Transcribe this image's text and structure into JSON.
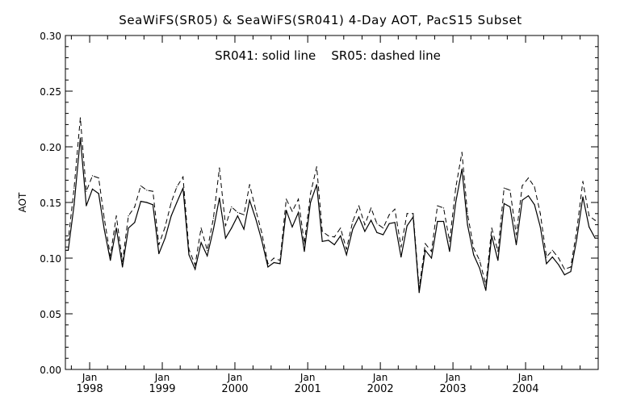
{
  "chart_data": {
    "type": "line",
    "title": "SeaWiFS(SR05) & SeaWiFS(SR041) 4-Day AOT, PacS15 Subset",
    "annotation": "SR041: solid line    SR05: dashed line",
    "xlabel": "",
    "ylabel": "AOT",
    "xlim": [
      "1997-09-01",
      "2004-12-31"
    ],
    "ylim": [
      0.0,
      0.3
    ],
    "y_ticks": [
      "0.00",
      "0.05",
      "0.10",
      "0.15",
      "0.20",
      "0.25",
      "0.30"
    ],
    "x_ticks": [
      {
        "date": "1998-01-01",
        "month": "Jan",
        "year": "1998"
      },
      {
        "date": "1999-01-01",
        "month": "Jan",
        "year": "1999"
      },
      {
        "date": "2000-01-01",
        "month": "Jan",
        "year": "2000"
      },
      {
        "date": "2001-01-01",
        "month": "Jan",
        "year": "2001"
      },
      {
        "date": "2002-01-01",
        "month": "Jan",
        "year": "2002"
      },
      {
        "date": "2003-01-01",
        "month": "Jan",
        "year": "2003"
      },
      {
        "date": "2004-01-01",
        "month": "Jan",
        "year": "2004"
      }
    ],
    "grid": false,
    "x": [
      "1997-09-15",
      "1997-10-15",
      "1997-11-15",
      "1997-12-15",
      "1998-01-15",
      "1998-02-15",
      "1998-03-15",
      "1998-04-15",
      "1998-05-15",
      "1998-06-15",
      "1998-07-15",
      "1998-08-15",
      "1998-09-15",
      "1998-10-15",
      "1998-11-15",
      "1998-12-15",
      "1999-01-15",
      "1999-02-15",
      "1999-03-15",
      "1999-04-15",
      "1999-05-15",
      "1999-06-15",
      "1999-07-15",
      "1999-08-15",
      "1999-09-15",
      "1999-10-15",
      "1999-11-15",
      "1999-12-15",
      "2000-01-15",
      "2000-02-15",
      "2000-03-15",
      "2000-04-15",
      "2000-05-15",
      "2000-06-15",
      "2000-07-15",
      "2000-08-15",
      "2000-09-15",
      "2000-10-15",
      "2000-11-15",
      "2000-12-15",
      "2001-01-15",
      "2001-02-15",
      "2001-03-15",
      "2001-04-15",
      "2001-05-15",
      "2001-06-15",
      "2001-07-15",
      "2001-08-15",
      "2001-09-15",
      "2001-10-15",
      "2001-11-15",
      "2001-12-15",
      "2002-01-15",
      "2002-02-15",
      "2002-03-15",
      "2002-04-15",
      "2002-05-15",
      "2002-06-15",
      "2002-07-15",
      "2002-08-15",
      "2002-09-15",
      "2002-10-15",
      "2002-11-15",
      "2002-12-15",
      "2003-01-15",
      "2003-02-15",
      "2003-03-15",
      "2003-04-15",
      "2003-05-15",
      "2003-06-15",
      "2003-07-15",
      "2003-08-15",
      "2003-09-15",
      "2003-10-15",
      "2003-11-15",
      "2003-12-15",
      "2004-01-15",
      "2004-02-15",
      "2004-03-15",
      "2004-04-15",
      "2004-05-15",
      "2004-06-15",
      "2004-07-15",
      "2004-08-15",
      "2004-09-15",
      "2004-10-15",
      "2004-11-15",
      "2004-12-15"
    ],
    "series": [
      {
        "style": "solid",
        "values": [
          0.107,
          0.148,
          0.208,
          0.147,
          0.162,
          0.158,
          0.126,
          0.098,
          0.127,
          0.092,
          0.127,
          0.132,
          0.151,
          0.15,
          0.148,
          0.104,
          0.118,
          0.138,
          0.15,
          0.163,
          0.103,
          0.09,
          0.114,
          0.102,
          0.126,
          0.154,
          0.118,
          0.127,
          0.138,
          0.126,
          0.152,
          0.135,
          0.116,
          0.092,
          0.096,
          0.095,
          0.143,
          0.128,
          0.141,
          0.106,
          0.15,
          0.166,
          0.115,
          0.116,
          0.112,
          0.12,
          0.103,
          0.126,
          0.137,
          0.124,
          0.134,
          0.123,
          0.121,
          0.131,
          0.132,
          0.101,
          0.129,
          0.137,
          0.069,
          0.107,
          0.1,
          0.133,
          0.133,
          0.106,
          0.15,
          0.18,
          0.13,
          0.103,
          0.091,
          0.071,
          0.12,
          0.098,
          0.149,
          0.146,
          0.112,
          0.152,
          0.156,
          0.148,
          0.128,
          0.095,
          0.101,
          0.094,
          0.085,
          0.088,
          0.118,
          0.155,
          0.128,
          0.118
        ]
      },
      {
        "style": "dashed",
        "values": [
          0.116,
          0.163,
          0.226,
          0.16,
          0.174,
          0.172,
          0.136,
          0.102,
          0.138,
          0.097,
          0.138,
          0.146,
          0.165,
          0.161,
          0.16,
          0.112,
          0.128,
          0.15,
          0.164,
          0.173,
          0.108,
          0.094,
          0.127,
          0.107,
          0.136,
          0.181,
          0.129,
          0.146,
          0.141,
          0.139,
          0.166,
          0.143,
          0.123,
          0.095,
          0.1,
          0.098,
          0.153,
          0.142,
          0.153,
          0.113,
          0.158,
          0.182,
          0.124,
          0.12,
          0.119,
          0.127,
          0.108,
          0.133,
          0.147,
          0.13,
          0.145,
          0.131,
          0.127,
          0.139,
          0.144,
          0.11,
          0.14,
          0.14,
          0.073,
          0.113,
          0.106,
          0.147,
          0.145,
          0.115,
          0.163,
          0.195,
          0.14,
          0.109,
          0.098,
          0.076,
          0.127,
          0.106,
          0.163,
          0.161,
          0.121,
          0.165,
          0.172,
          0.164,
          0.14,
          0.101,
          0.107,
          0.1,
          0.09,
          0.092,
          0.126,
          0.169,
          0.138,
          0.134
        ]
      }
    ]
  }
}
